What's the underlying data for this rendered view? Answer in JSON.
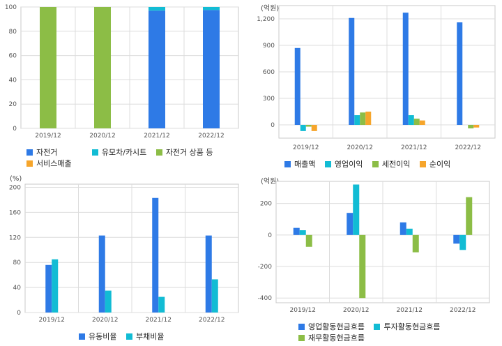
{
  "colors": {
    "blue": "#2e7ae6",
    "cyan": "#12bcd4",
    "green": "#8cbd46",
    "orange": "#f6a52b",
    "grid": "#dcdcdc",
    "frame": "#c8c8c8",
    "plot_bg": "#ffffff",
    "page_bg": "#f7f7f7"
  },
  "chart_data": [
    {
      "type": "bar",
      "stacked": true,
      "categories": [
        "2019/12",
        "2020/12",
        "2021/12",
        "2022/12"
      ],
      "series": [
        {
          "name": "자전거",
          "color_key": "blue",
          "values": [
            0,
            0,
            97,
            97.5
          ]
        },
        {
          "name": "유모차/카시트",
          "color_key": "cyan",
          "values": [
            0,
            0,
            3,
            2.5
          ]
        },
        {
          "name": "자전거 상품 등",
          "color_key": "green",
          "values": [
            100,
            100,
            0,
            0
          ]
        },
        {
          "name": "서비스매출",
          "color_key": "orange",
          "values": [
            0,
            0,
            0,
            0
          ]
        }
      ],
      "ylim": [
        0,
        100
      ],
      "yticks": [
        "0",
        "20",
        "40",
        "60",
        "80",
        "100"
      ],
      "unit": "",
      "grid": true,
      "legend": "bottom-left"
    },
    {
      "type": "bar",
      "stacked": false,
      "categories": [
        "2019/12",
        "2020/12",
        "2021/12",
        "2022/12"
      ],
      "series": [
        {
          "name": "매출액",
          "color_key": "blue",
          "values": [
            870,
            1210,
            1270,
            1160
          ]
        },
        {
          "name": "영업이익",
          "color_key": "cyan",
          "values": [
            -70,
            110,
            110,
            0
          ]
        },
        {
          "name": "세전이익",
          "color_key": "green",
          "values": [
            -20,
            140,
            70,
            -40
          ]
        },
        {
          "name": "순이익",
          "color_key": "orange",
          "values": [
            -70,
            150,
            50,
            -30
          ]
        }
      ],
      "ylim": [
        -150,
        1350
      ],
      "yticks": [
        "0",
        "300",
        "600",
        "900",
        "1,200"
      ],
      "unit": "(억원)",
      "grid": true,
      "legend": "bottom-left"
    },
    {
      "type": "bar",
      "stacked": false,
      "categories": [
        "2019/12",
        "2020/12",
        "2021/12",
        "2022/12"
      ],
      "series": [
        {
          "name": "유동비율",
          "color_key": "blue",
          "values": [
            76,
            123,
            183,
            123
          ]
        },
        {
          "name": "부채비율",
          "color_key": "cyan",
          "values": [
            85,
            35,
            25,
            53
          ]
        }
      ],
      "ylim": [
        0,
        205
      ],
      "yticks": [
        "0",
        "40",
        "80",
        "120",
        "160",
        "200"
      ],
      "unit": "(%)",
      "grid": true,
      "legend": "bottom-center"
    },
    {
      "type": "bar",
      "stacked": false,
      "categories": [
        "2019/12",
        "2020/12",
        "2021/12",
        "2022/12"
      ],
      "series": [
        {
          "name": "영업활동현금흐름",
          "color_key": "blue",
          "values": [
            45,
            140,
            80,
            -55
          ]
        },
        {
          "name": "투자활동현금흐름",
          "color_key": "cyan",
          "values": [
            30,
            320,
            40,
            -95
          ]
        },
        {
          "name": "재무활동현금흐름",
          "color_key": "green",
          "values": [
            -75,
            -400,
            -110,
            240
          ]
        }
      ],
      "ylim": [
        -430,
        340
      ],
      "yticks": [
        "-400",
        "-200",
        "0",
        "200"
      ],
      "unit": "(억원)",
      "grid": true,
      "legend": "bottom-center"
    }
  ]
}
